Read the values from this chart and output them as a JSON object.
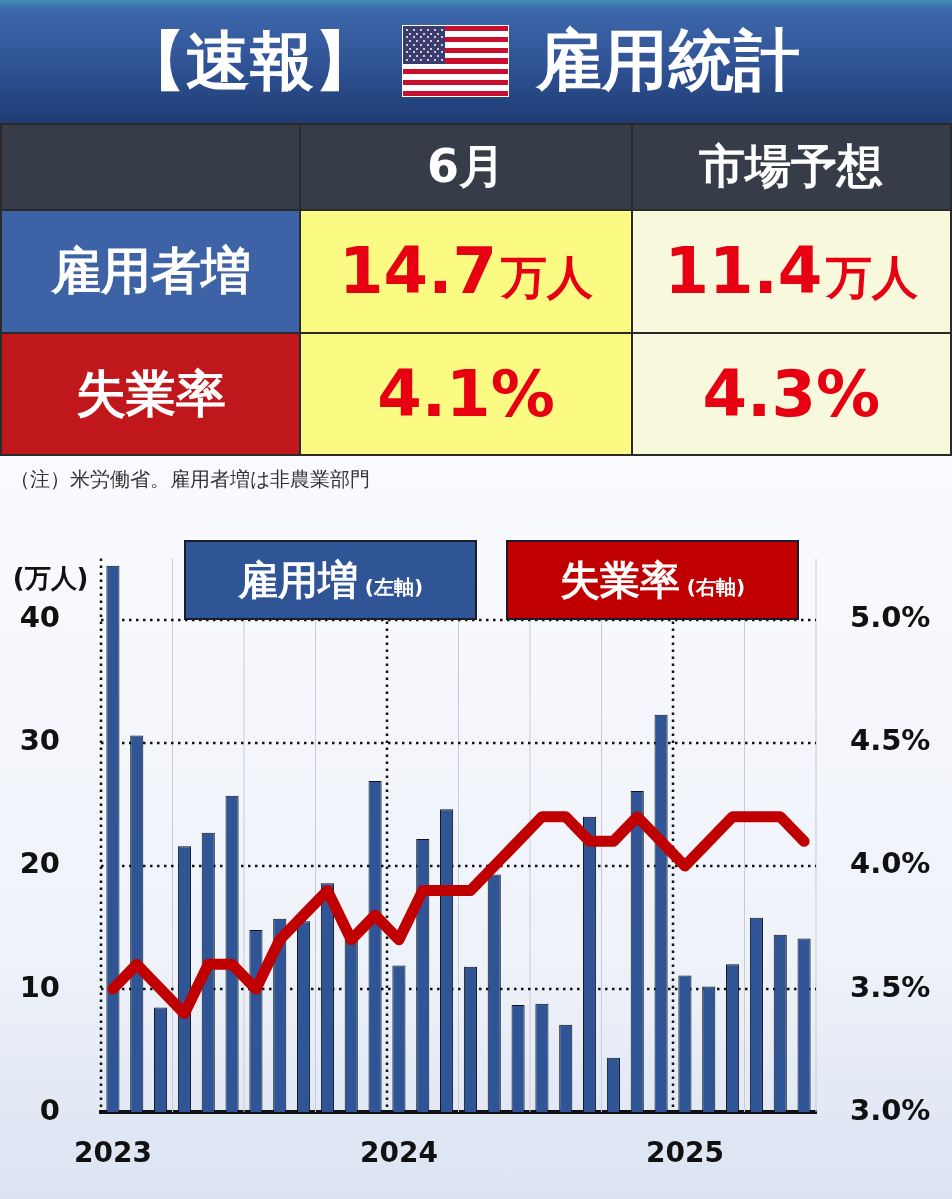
{
  "chart_data": [
    {
      "type": "other",
      "title": "【速報】",
      "subtitle": "雇用統計",
      "categories": [
        "6月",
        "市場予想"
      ],
      "y_categories": [
        "雇用者増",
        "失業率"
      ],
      "cell_labels": [
        [
          "14.7万人",
          "11.4万人"
        ],
        [
          "4.1%",
          "4.3%"
        ]
      ],
      "annotations": [
        "（注）米労働省。雇用者増は非農業部門"
      ]
    },
    {
      "type": "bar",
      "ylabel": "(万人)",
      "categories": [
        "2023",
        null,
        null,
        null,
        null,
        null,
        null,
        null,
        null,
        null,
        null,
        null,
        "2024",
        null,
        null,
        null,
        null,
        null,
        null,
        null,
        null,
        null,
        null,
        null,
        "2025",
        null,
        null,
        null,
        null,
        null
      ],
      "series": [
        {
          "name": "雇用増 (左軸)",
          "color": "#2f5597",
          "values": [
            44.4,
            30.6,
            8.5,
            21.6,
            22.7,
            25.7,
            14.8,
            15.7,
            15.5,
            18.6,
            14.0,
            26.9,
            11.9,
            22.2,
            24.6,
            11.8,
            19.3,
            8.7,
            8.8,
            7.1,
            24.0,
            4.4,
            26.1,
            32.3,
            11.1,
            10.2,
            12.0,
            15.8,
            14.4,
            14.1
          ]
        },
        {
          "name": "失業率 (右軸)",
          "type": "line",
          "axis": "y2",
          "color": "#c00000",
          "values": [
            3.5,
            3.6,
            3.5,
            3.4,
            3.6,
            3.6,
            3.5,
            3.7,
            3.8,
            3.9,
            3.7,
            3.8,
            3.7,
            3.9,
            3.9,
            3.9,
            4.0,
            4.1,
            4.2,
            4.2,
            4.1,
            4.1,
            4.2,
            4.1,
            4.0,
            4.1,
            4.2,
            4.2,
            4.2,
            4.1
          ]
        }
      ],
      "ylim": [
        0,
        45
      ],
      "yticks": [
        0,
        10,
        20,
        30,
        40
      ],
      "y2lim": [
        3.0,
        5.25
      ],
      "y2ticks": [
        {
          "value": 3.0,
          "label": "3.0%"
        },
        {
          "value": 3.5,
          "label": "3.5%"
        },
        {
          "value": 4.0,
          "label": "4.0%"
        },
        {
          "value": 4.5,
          "label": "4.5%"
        },
        {
          "value": 5.0,
          "label": "5.0%"
        }
      ],
      "grid": true,
      "legend": "top",
      "marker": "none"
    }
  ]
}
